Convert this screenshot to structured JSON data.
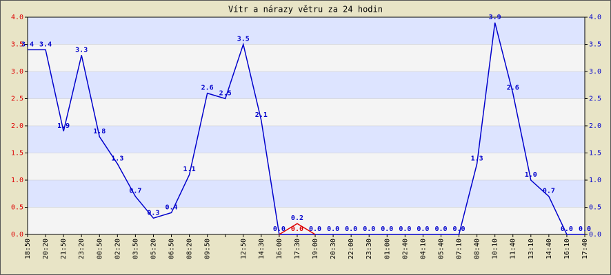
{
  "chart_data": {
    "type": "line",
    "title": "Vítr a nárazy větru za 24 hodin",
    "categories": [
      "18:50",
      "20:20",
      "21:50",
      "23:20",
      "00:50",
      "02:20",
      "03:50",
      "05:20",
      "06:50",
      "08:20",
      "09:50",
      null,
      "12:50",
      "14:30",
      "16:00",
      "17:30",
      "19:00",
      "20:30",
      "22:00",
      "23:30",
      "01:00",
      "02:40",
      "04:10",
      "05:40",
      "07:10",
      "08:40",
      "10:10",
      "11:40",
      "13:10",
      "14:40",
      "16:10",
      "17:40"
    ],
    "series": [
      {
        "color": "#0000cc",
        "values": [
          3.4,
          3.4,
          1.9,
          3.3,
          1.8,
          1.3,
          0.7,
          0.3,
          0.4,
          1.1,
          2.6,
          2.5,
          3.5,
          2.1,
          0.0,
          0.0,
          0.0,
          0.0,
          0.0,
          0.0,
          0.0,
          0.0,
          0.0,
          0.0,
          0.0,
          1.3,
          3.9,
          2.6,
          1.0,
          0.7,
          0.0,
          0.0
        ],
        "value_labels": [
          "3.4",
          "3.4",
          "1.9",
          "3.3",
          "1.8",
          "1.3",
          "0.7",
          "0.3",
          "0.4",
          "1.1",
          "2.6",
          "2.5",
          "3.5",
          "2.1",
          "0.0",
          "0.0",
          "0.0",
          "0.0",
          "0.0",
          "0.0",
          "0.0",
          "0.0",
          "0.0",
          "0.0",
          "0.0",
          "1.3",
          "3.9",
          "2.6",
          "1.0",
          "0.7",
          "0.0",
          "0.0"
        ]
      },
      {
        "color": "#dd0000",
        "values": [
          null,
          null,
          null,
          null,
          null,
          null,
          null,
          null,
          null,
          null,
          null,
          null,
          null,
          null,
          0.0,
          0.2,
          0.0,
          null,
          null,
          null,
          null,
          null,
          null,
          null,
          null,
          null,
          null,
          null,
          null,
          null,
          null,
          null
        ],
        "value_labels": [
          null,
          null,
          null,
          null,
          null,
          null,
          null,
          null,
          null,
          null,
          null,
          null,
          null,
          null,
          null,
          "0.2",
          null,
          null,
          null,
          null,
          null,
          null,
          null,
          null,
          null,
          null,
          null,
          null,
          null,
          null,
          null,
          null
        ]
      }
    ],
    "ylim": [
      0,
      4
    ],
    "yticks": [
      {
        "value": 0,
        "label": "0.0"
      },
      {
        "value": 0.5,
        "label": "0.5"
      },
      {
        "value": 1,
        "label": "1.0"
      },
      {
        "value": 1.5,
        "label": "1.5"
      },
      {
        "value": 2,
        "label": "2.0"
      },
      {
        "value": 2.5,
        "label": "2.5"
      },
      {
        "value": 3,
        "label": "3.0"
      },
      {
        "value": 3.5,
        "label": "3.5"
      },
      {
        "value": 4,
        "label": "4.0"
      }
    ],
    "y2lim": [
      0,
      4
    ],
    "y2ticks": [
      {
        "value": 0,
        "label": "0.0"
      },
      {
        "value": 0.5,
        "label": "0.5"
      },
      {
        "value": 1,
        "label": "1.0"
      },
      {
        "value": 1.5,
        "label": "1.5"
      },
      {
        "value": 2,
        "label": "2.0"
      },
      {
        "value": 2.5,
        "label": "2.5"
      },
      {
        "value": 3,
        "label": "3.0"
      },
      {
        "value": 3.5,
        "label": "3.5"
      },
      {
        "value": 4,
        "label": "4.0"
      }
    ],
    "ytick_color": "#dd0000",
    "y2tick_color": "#0000cc",
    "band_colors": [
      "#f4f4f4",
      "#dde4ff"
    ]
  }
}
